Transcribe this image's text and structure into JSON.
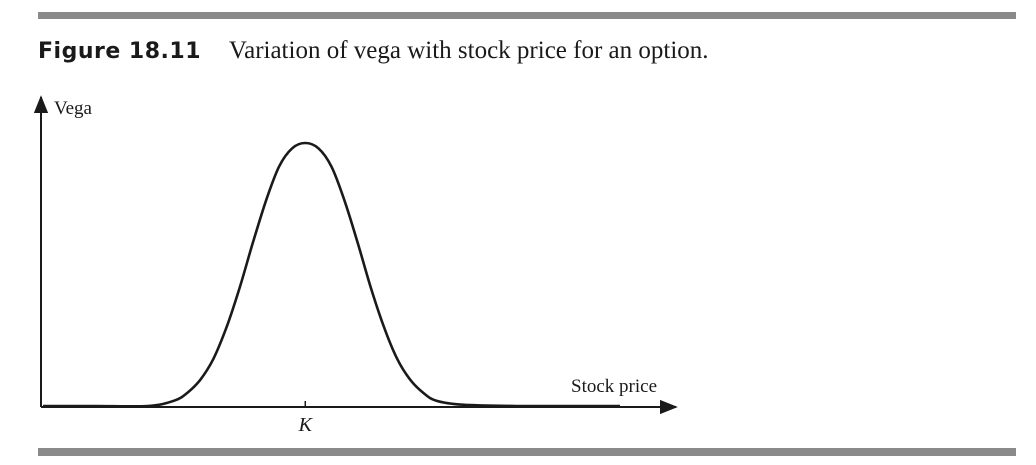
{
  "figure": {
    "label": "Figure 18.11",
    "caption": "Variation of vega with stock price for an option."
  },
  "chart_data": {
    "type": "line",
    "title": "",
    "xlabel": "Stock price",
    "ylabel": "Vega",
    "x_tick_labels": [
      {
        "value": 1.0,
        "label": "K"
      }
    ],
    "xlim": [
      0.0,
      2.2
    ],
    "ylim": [
      0.0,
      1.1
    ],
    "grid": false,
    "series": [
      {
        "name": "",
        "x": [
          0.0,
          0.2,
          0.4,
          0.5,
          0.55,
          0.6,
          0.65,
          0.7,
          0.75,
          0.8,
          0.85,
          0.9,
          0.95,
          1.0,
          1.05,
          1.1,
          1.15,
          1.2,
          1.25,
          1.3,
          1.35,
          1.4,
          1.45,
          1.5,
          1.6,
          1.8,
          2.0,
          2.2
        ],
        "y": [
          0.0,
          0.0,
          0.0,
          0.02,
          0.05,
          0.1,
          0.18,
          0.3,
          0.45,
          0.62,
          0.78,
          0.91,
          0.98,
          1.0,
          0.98,
          0.91,
          0.78,
          0.62,
          0.45,
          0.3,
          0.18,
          0.1,
          0.05,
          0.02,
          0.005,
          0.0,
          0.0,
          0.0
        ]
      }
    ]
  }
}
